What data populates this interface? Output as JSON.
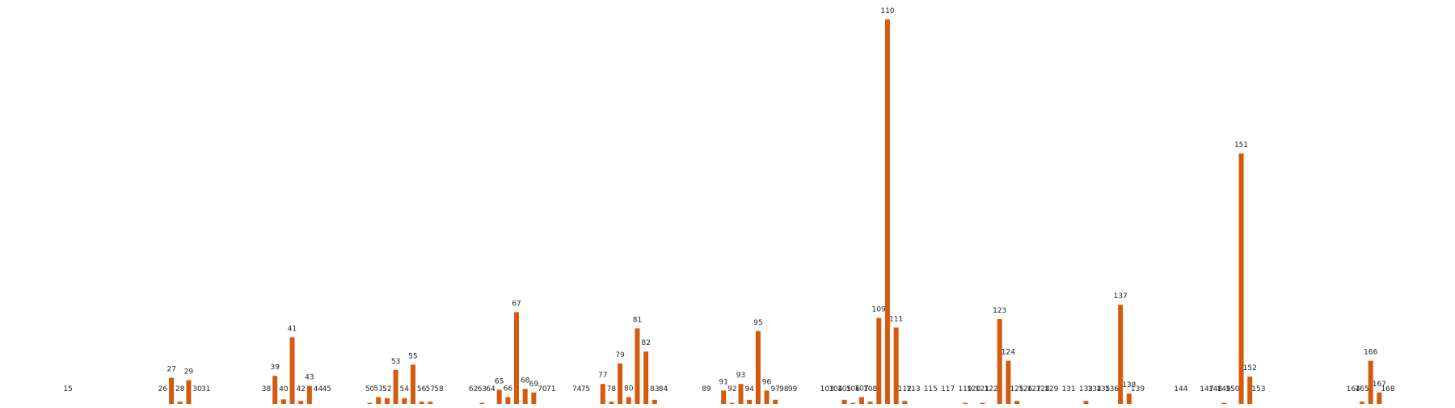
{
  "chart_data": {
    "type": "bar",
    "title": "",
    "xlabel": "",
    "ylabel": "",
    "bar_color": "#d45a0d",
    "ylim": [
      0,
      1.0
    ],
    "grid": false,
    "legend": "none",
    "bars": [
      {
        "label": "15",
        "value": 0.0,
        "show_bar": false
      },
      {
        "label": "26",
        "value": 0.003
      },
      {
        "label": "27",
        "value": 0.072
      },
      {
        "label": "28",
        "value": 0.01
      },
      {
        "label": "29",
        "value": 0.066
      },
      {
        "label": "30",
        "value": 0.0,
        "show_bar": false
      },
      {
        "label": "31",
        "value": 0.0,
        "show_bar": false
      },
      {
        "label": "38",
        "value": 0.003
      },
      {
        "label": "39",
        "value": 0.077
      },
      {
        "label": "40",
        "value": 0.016
      },
      {
        "label": "41",
        "value": 0.177
      },
      {
        "label": "42",
        "value": 0.012
      },
      {
        "label": "43",
        "value": 0.051
      },
      {
        "label": "44",
        "value": 0.0,
        "show_bar": false
      },
      {
        "label": "45",
        "value": 0.003
      },
      {
        "label": "50",
        "value": 0.007
      },
      {
        "label": "51",
        "value": 0.022
      },
      {
        "label": "52",
        "value": 0.019
      },
      {
        "label": "53",
        "value": 0.092
      },
      {
        "label": "54",
        "value": 0.019
      },
      {
        "label": "55",
        "value": 0.106
      },
      {
        "label": "56",
        "value": 0.01
      },
      {
        "label": "57",
        "value": 0.01
      },
      {
        "label": "58",
        "value": 0.0,
        "show_bar": false
      },
      {
        "label": "62",
        "value": 0.0,
        "show_bar": false
      },
      {
        "label": "63",
        "value": 0.007
      },
      {
        "label": "64",
        "value": 0.003
      },
      {
        "label": "65",
        "value": 0.041
      },
      {
        "label": "66",
        "value": 0.022
      },
      {
        "label": "67",
        "value": 0.242
      },
      {
        "label": "68",
        "value": 0.043
      },
      {
        "label": "69",
        "value": 0.034
      },
      {
        "label": "70",
        "value": 0.003
      },
      {
        "label": "71",
        "value": 0.003
      },
      {
        "label": "74",
        "value": 0.0,
        "show_bar": false
      },
      {
        "label": "75",
        "value": 0.0,
        "show_bar": false
      },
      {
        "label": "77",
        "value": 0.056
      },
      {
        "label": "78",
        "value": 0.01
      },
      {
        "label": "79",
        "value": 0.109
      },
      {
        "label": "80",
        "value": 0.022
      },
      {
        "label": "81",
        "value": 0.2
      },
      {
        "label": "82",
        "value": 0.14
      },
      {
        "label": "83",
        "value": 0.015
      },
      {
        "label": "84",
        "value": 0.003
      },
      {
        "label": "89",
        "value": 0.0,
        "show_bar": false
      },
      {
        "label": "91",
        "value": 0.039
      },
      {
        "label": "92",
        "value": 0.007
      },
      {
        "label": "93",
        "value": 0.056
      },
      {
        "label": "94",
        "value": 0.015
      },
      {
        "label": "95",
        "value": 0.193
      },
      {
        "label": "96",
        "value": 0.039
      },
      {
        "label": "97",
        "value": 0.015
      },
      {
        "label": "98",
        "value": 0.003
      },
      {
        "label": "99",
        "value": 0.003
      },
      {
        "label": "103",
        "value": 0.003
      },
      {
        "label": "104",
        "value": 0.0,
        "show_bar": false
      },
      {
        "label": "105",
        "value": 0.015
      },
      {
        "label": "106",
        "value": 0.007
      },
      {
        "label": "107",
        "value": 0.022
      },
      {
        "label": "108",
        "value": 0.01
      },
      {
        "label": "109",
        "value": 0.227
      },
      {
        "label": "110",
        "value": 1.0
      },
      {
        "label": "111",
        "value": 0.202
      },
      {
        "label": "112",
        "value": 0.012
      },
      {
        "label": "113",
        "value": 0.0,
        "show_bar": false
      },
      {
        "label": "115",
        "value": 0.003
      },
      {
        "label": "117",
        "value": 0.003
      },
      {
        "label": "119",
        "value": 0.007
      },
      {
        "label": "120",
        "value": 0.0,
        "show_bar": false
      },
      {
        "label": "121",
        "value": 0.007
      },
      {
        "label": "122",
        "value": 0.003
      },
      {
        "label": "123",
        "value": 0.224
      },
      {
        "label": "124",
        "value": 0.116
      },
      {
        "label": "125",
        "value": 0.012
      },
      {
        "label": "126",
        "value": 0.0,
        "show_bar": false
      },
      {
        "label": "127",
        "value": 0.0,
        "show_bar": false
      },
      {
        "label": "128",
        "value": 0.0,
        "show_bar": false
      },
      {
        "label": "129",
        "value": 0.003
      },
      {
        "label": "131",
        "value": 0.003
      },
      {
        "label": "133",
        "value": 0.012
      },
      {
        "label": "134",
        "value": 0.003
      },
      {
        "label": "135",
        "value": 0.0,
        "show_bar": false
      },
      {
        "label": "136",
        "value": 0.003
      },
      {
        "label": "137",
        "value": 0.261
      },
      {
        "label": "138",
        "value": 0.031
      },
      {
        "label": "139",
        "value": 0.003
      },
      {
        "label": "144",
        "value": 0.0,
        "show_bar": false
      },
      {
        "label": "147",
        "value": 0.003
      },
      {
        "label": "148",
        "value": 0.003
      },
      {
        "label": "149",
        "value": 0.007
      },
      {
        "label": "150",
        "value": 0.003
      },
      {
        "label": "151",
        "value": 0.653
      },
      {
        "label": "152",
        "value": 0.075
      },
      {
        "label": "153",
        "value": 0.003
      },
      {
        "label": "164",
        "value": 0.0,
        "show_bar": false
      },
      {
        "label": "165",
        "value": 0.01
      },
      {
        "label": "166",
        "value": 0.116
      },
      {
        "label": "167",
        "value": 0.034
      },
      {
        "label": "168",
        "value": 0.003
      }
    ]
  }
}
